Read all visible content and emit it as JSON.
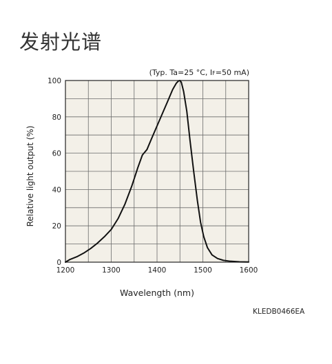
{
  "page": {
    "heading": "发射光谱"
  },
  "chart_data": {
    "type": "line",
    "conditions": {
      "prefix": "(Typ. Ta=25 °C, I",
      "sub": "F",
      "suffix": "=50 mA)"
    },
    "xlabel": "Wavelength (nm)",
    "ylabel": "Relative light output (%)",
    "xlim": [
      1200,
      1600
    ],
    "ylim": [
      0,
      100
    ],
    "x_ticks": [
      1200,
      1300,
      1400,
      1500,
      1600
    ],
    "y_ticks": [
      0,
      20,
      40,
      60,
      80,
      100
    ],
    "grid": true,
    "series": [
      {
        "x": [
          1200,
          1210,
          1225,
          1240,
          1255,
          1270,
          1285,
          1300,
          1315,
          1330,
          1345,
          1358,
          1368,
          1378,
          1388,
          1400,
          1412,
          1424,
          1434,
          1442,
          1447,
          1450,
          1453,
          1458,
          1465,
          1472,
          1480,
          1488,
          1495,
          1502,
          1510,
          1520,
          1532,
          1545,
          1560,
          1580,
          1600
        ],
        "y": [
          0,
          1.5,
          3,
          5,
          7.5,
          10.5,
          14,
          18,
          24,
          32,
          42,
          52,
          59,
          62,
          68,
          75,
          82,
          89,
          95,
          98.5,
          99.8,
          100,
          99,
          94,
          83,
          67,
          50,
          34,
          22,
          14,
          8,
          4,
          2,
          1,
          0.5,
          0.2,
          0.1
        ]
      }
    ]
  },
  "footer": {
    "code": "KLEDB0466EA"
  }
}
